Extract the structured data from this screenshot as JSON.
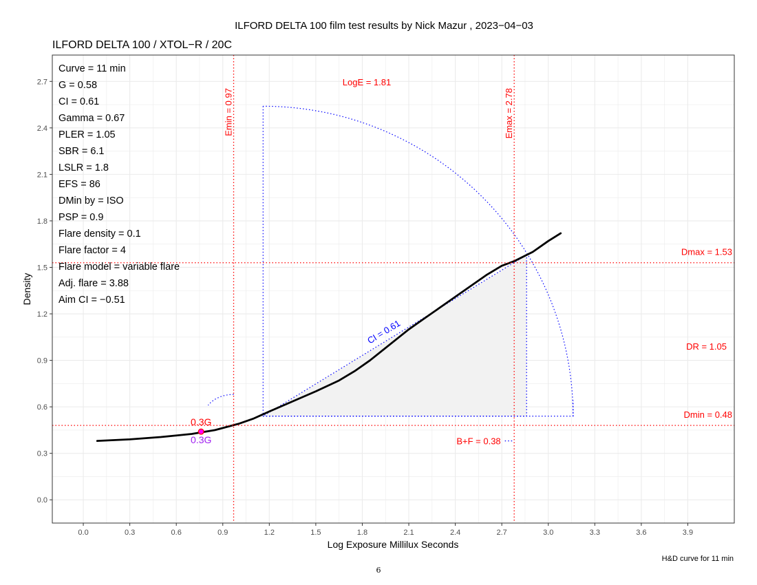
{
  "chart_data": {
    "type": "line",
    "title": "ILFORD DELTA 100 film test results by Nick Mazur , 2023−04−03",
    "subtitle": "ILFORD DELTA 100 / XTOL−R / 20C",
    "xlabel": "Log Exposure Millilux Seconds",
    "ylabel": "Density",
    "caption": "H&D curve for 11 min",
    "xlim": [
      -0.2,
      4.2
    ],
    "ylim": [
      -0.15,
      2.87
    ],
    "x_ticks": [
      0.0,
      0.3,
      0.6,
      0.9,
      1.2,
      1.5,
      1.8,
      2.1,
      2.4,
      2.7,
      3.0,
      3.3,
      3.6,
      3.9
    ],
    "x_tick_labels": [
      "0.0",
      "0.3",
      "0.6",
      "0.9",
      "1.2",
      "1.5",
      "1.8",
      "2.1",
      "2.4",
      "2.7",
      "3.0",
      "3.3",
      "3.6",
      "3.9"
    ],
    "y_ticks": [
      0.0,
      0.3,
      0.6,
      0.9,
      1.2,
      1.5,
      1.8,
      2.1,
      2.4,
      2.7
    ],
    "y_tick_labels": [
      "0.0",
      "0.3",
      "0.6",
      "0.9",
      "1.2",
      "1.5",
      "1.8",
      "2.1",
      "2.4",
      "2.7"
    ],
    "grid": true,
    "colors": {
      "curve": "#000000",
      "reference": "#ff0000",
      "construction": "#0000ff",
      "marker": "#ff00ff",
      "marker_label": "#a020f0",
      "shade": "#f2f2f2",
      "panel_border": "#333333",
      "grid": "#ebebeb"
    },
    "series": [
      {
        "x": [
          0.09,
          0.3,
          0.5,
          0.7,
          0.85,
          1.0,
          1.1,
          1.2,
          1.35,
          1.5,
          1.65,
          1.75,
          1.85,
          2.0,
          2.1,
          2.2,
          2.3,
          2.4,
          2.5,
          2.6,
          2.7,
          2.78,
          2.9,
          3.0,
          3.08
        ],
        "y": [
          0.38,
          0.39,
          0.405,
          0.425,
          0.45,
          0.49,
          0.525,
          0.57,
          0.635,
          0.7,
          0.77,
          0.83,
          0.9,
          1.02,
          1.1,
          1.17,
          1.24,
          1.31,
          1.38,
          1.45,
          1.51,
          1.54,
          1.6,
          1.67,
          1.72
        ]
      }
    ],
    "reference_lines": {
      "vertical": [
        {
          "x": 0.97,
          "label": "Emin = 0.97"
        },
        {
          "x": 2.78,
          "label": "Emax = 2.78"
        }
      ],
      "horizontal": [
        {
          "y": 1.53,
          "label": "Dmax = 1.53"
        },
        {
          "y": 0.48,
          "label": "Dmin = 0.48"
        }
      ]
    },
    "annotations": {
      "loge_label": "LogE =  1.81",
      "dr_label": "DR = 1.05",
      "bf_label": "B+F =  0.38",
      "ci_label": "CI = 0.61",
      "point_label_top": "0.3G",
      "point_label_bottom": "0.3G"
    },
    "speed_point": {
      "x": 0.76,
      "y": 0.44
    },
    "ci_line": {
      "x": [
        1.16,
        2.86
      ],
      "y": [
        0.54,
        1.58
      ]
    },
    "triangle": {
      "x": [
        1.16,
        2.86,
        2.86
      ],
      "y": [
        0.54,
        0.54,
        1.58
      ]
    },
    "construction_frame": {
      "x": [
        1.16,
        1.16,
        3.16,
        3.16
      ],
      "y": [
        2.54,
        0.54,
        0.54,
        0.64
      ]
    },
    "arc": {
      "center": [
        1.16,
        0.54
      ],
      "radius_x": 2.0,
      "radius_y": 2.0,
      "from_deg": 0,
      "to_deg": 90
    },
    "small_arc": {
      "center": [
        0.97,
        0.54
      ],
      "radius_x": 0.19,
      "radius_y": 0.14,
      "from_deg": 90,
      "to_deg": 150
    },
    "bf_segment": {
      "x": [
        2.72,
        2.78
      ],
      "y": [
        0.38,
        0.38
      ]
    },
    "stats": [
      "Curve =  11 min",
      "G =  0.58",
      "CI =  0.61",
      "Gamma =  0.67",
      "PLER =  1.05",
      "SBR =  6.1",
      "LSLR =  1.8",
      "EFS = 86",
      "DMin by = ISO",
      "PSP = 0.9",
      "Flare density = 0.1",
      "Flare factor = 4",
      "Flare model = variable flare",
      "Adj. flare = 3.88",
      "Aim CI =  −0.51"
    ]
  },
  "page_number": "6"
}
